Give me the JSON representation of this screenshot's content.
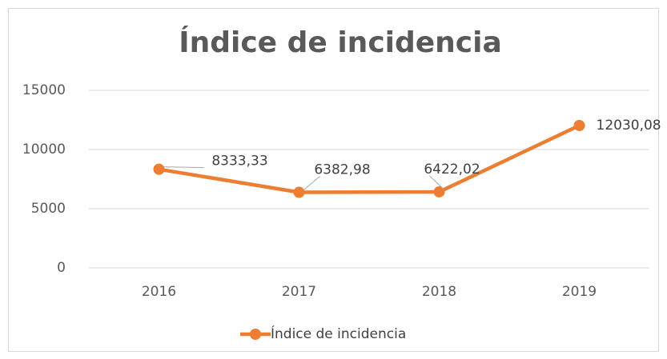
{
  "chart_data": {
    "type": "line",
    "title": "Índice de incidencia",
    "categories": [
      "2016",
      "2017",
      "2018",
      "2019"
    ],
    "series": [
      {
        "name": "Índice de incidencia",
        "color": "#ed7d31",
        "values": [
          8333.33,
          6382.98,
          6422.02,
          12030.08
        ],
        "value_labels": [
          "8333,33",
          "6382,98",
          "6422,02",
          "12030,08"
        ]
      }
    ],
    "ylim": [
      0,
      15000
    ],
    "yticks": [
      0,
      5000,
      10000,
      15000
    ],
    "grid": true,
    "legend": "bottom"
  }
}
